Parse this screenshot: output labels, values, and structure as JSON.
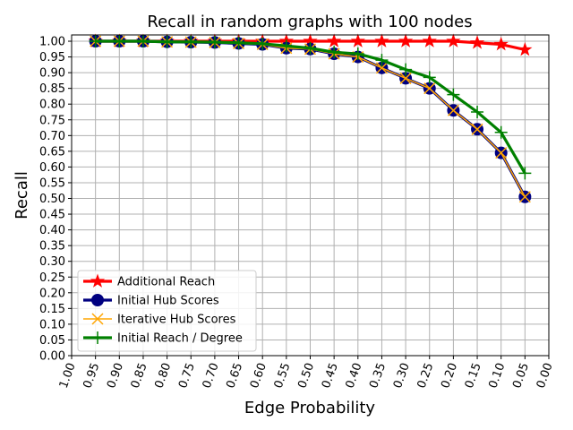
{
  "chart_data": {
    "type": "line",
    "title": "Recall in random graphs with 100 nodes",
    "xlabel": "Edge Probability",
    "ylabel": "Recall",
    "xlim": [
      1.0,
      0.0
    ],
    "ylim": [
      0.0,
      1.02
    ],
    "grid": true,
    "legend_position": "lower-left",
    "x_ticks": [
      "1.00",
      "0.95",
      "0.90",
      "0.85",
      "0.80",
      "0.75",
      "0.70",
      "0.65",
      "0.60",
      "0.55",
      "0.50",
      "0.45",
      "0.40",
      "0.35",
      "0.30",
      "0.25",
      "0.20",
      "0.15",
      "0.10",
      "0.05",
      "0.00"
    ],
    "y_ticks": [
      "0.00",
      "0.05",
      "0.10",
      "0.15",
      "0.20",
      "0.25",
      "0.30",
      "0.35",
      "0.40",
      "0.45",
      "0.50",
      "0.55",
      "0.60",
      "0.65",
      "0.70",
      "0.75",
      "0.80",
      "0.85",
      "0.90",
      "0.95",
      "1.00"
    ],
    "x": [
      0.95,
      0.9,
      0.85,
      0.8,
      0.75,
      0.7,
      0.65,
      0.6,
      0.55,
      0.5,
      0.45,
      0.4,
      0.35,
      0.3,
      0.25,
      0.2,
      0.15,
      0.1,
      0.05
    ],
    "series": [
      {
        "name": "Additional Reach",
        "color": "#ff0000",
        "marker": "star",
        "values": [
          1.0,
          1.0,
          1.0,
          1.0,
          1.0,
          1.0,
          1.0,
          1.0,
          1.0,
          1.0,
          1.0,
          1.0,
          1.0,
          1.0,
          1.0,
          1.0,
          0.995,
          0.99,
          0.973
        ]
      },
      {
        "name": "Initial Hub Scores",
        "color": "#000080",
        "marker": "circle",
        "values": [
          1.0,
          1.0,
          1.0,
          0.998,
          0.997,
          0.996,
          0.993,
          0.99,
          0.978,
          0.975,
          0.96,
          0.95,
          0.915,
          0.882,
          0.85,
          0.78,
          0.72,
          0.645,
          0.505
        ]
      },
      {
        "name": "Iterative Hub Scores",
        "color": "#ffa500",
        "marker": "x",
        "values": [
          1.0,
          1.0,
          1.0,
          0.998,
          0.997,
          0.996,
          0.993,
          0.99,
          0.978,
          0.975,
          0.96,
          0.95,
          0.915,
          0.882,
          0.85,
          0.78,
          0.72,
          0.645,
          0.505
        ]
      },
      {
        "name": "Initial Reach / Degree",
        "color": "#008000",
        "marker": "plus",
        "values": [
          1.0,
          1.0,
          1.0,
          0.998,
          0.998,
          0.997,
          0.995,
          0.992,
          0.985,
          0.978,
          0.965,
          0.96,
          0.94,
          0.91,
          0.885,
          0.83,
          0.775,
          0.71,
          0.58
        ]
      }
    ]
  }
}
